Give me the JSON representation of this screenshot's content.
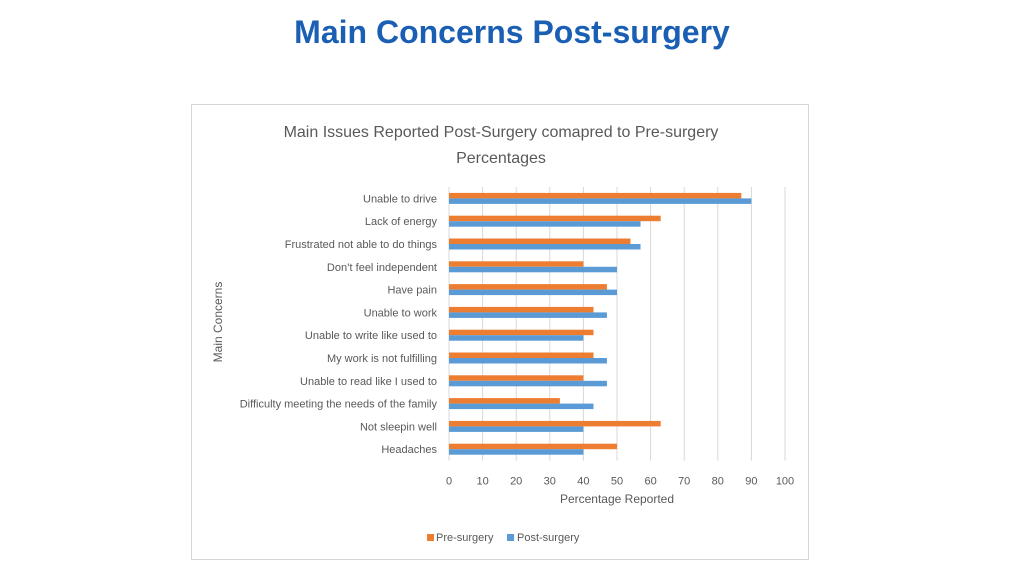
{
  "slide": {
    "title": "Main Concerns Post-surgery"
  },
  "colors": {
    "pre": "#ED7D31",
    "post": "#5B9BD5",
    "grid": "#D9D9D9",
    "text": "#595959"
  },
  "chart_data": {
    "type": "bar",
    "orientation": "horizontal",
    "title": "Main Issues Reported Post-Surgery comapred to Pre-surgery Percentages",
    "title_lines": [
      "Main Issues Reported Post-Surgery comapred to Pre-surgery",
      "Percentages"
    ],
    "xlabel": "Percentage Reported",
    "ylabel": "Main Concerns",
    "xlim": [
      0,
      100
    ],
    "xticks": [
      0,
      10,
      20,
      30,
      40,
      50,
      60,
      70,
      80,
      90,
      100
    ],
    "grid": true,
    "legend_position": "bottom",
    "categories": [
      "Unable to drive",
      "Lack of energy",
      "Frustrated not able to do things",
      "Don’t feel independent",
      "Have pain",
      "Unable to work",
      "Unable to write like used to",
      "My work is not fulfilling",
      "Unable to read like I used to",
      "Difficulty meeting the needs of the family",
      "Not sleepin well",
      "Headaches"
    ],
    "series": [
      {
        "name": "Pre-surgery",
        "values": [
          87,
          63,
          54,
          40,
          47,
          43,
          43,
          43,
          40,
          33,
          63,
          50
        ]
      },
      {
        "name": "Post-surgery",
        "values": [
          90,
          57,
          57,
          50,
          50,
          47,
          40,
          47,
          47,
          43,
          40,
          40
        ]
      }
    ]
  }
}
